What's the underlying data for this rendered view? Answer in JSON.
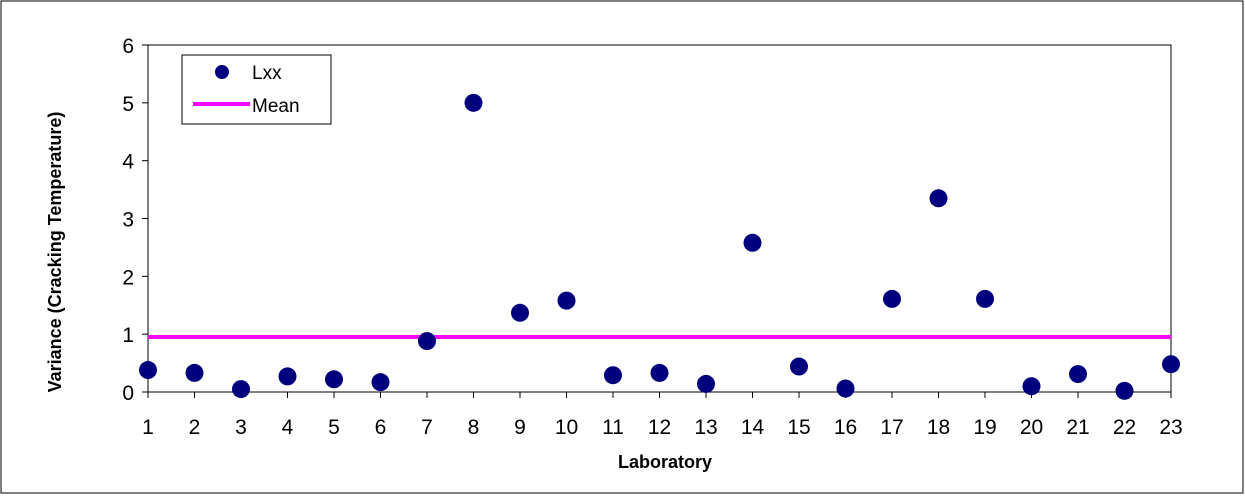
{
  "chart_data": {
    "type": "scatter",
    "title": "",
    "xlabel": "Laboratory",
    "ylabel": "Variance (Cracking Temperature)",
    "x": [
      1,
      2,
      3,
      4,
      5,
      6,
      7,
      8,
      9,
      10,
      11,
      12,
      13,
      14,
      15,
      16,
      17,
      18,
      19,
      20,
      21,
      22,
      23
    ],
    "x_tick_labels": [
      "1",
      "2",
      "3",
      "4",
      "5",
      "6",
      "7",
      "8",
      "9",
      "10",
      "11",
      "12",
      "13",
      "14",
      "15",
      "16",
      "17",
      "18",
      "19",
      "20",
      "21",
      "22",
      "23"
    ],
    "y_tick_labels": [
      "0",
      "1",
      "2",
      "3",
      "4",
      "5",
      "6"
    ],
    "xlim": [
      1,
      23
    ],
    "ylim": [
      0,
      6
    ],
    "grid": false,
    "legend_position": "top-left",
    "series": [
      {
        "name": "Lxx",
        "kind": "marker",
        "color": "#00007f",
        "values": [
          0.38,
          0.33,
          0.05,
          0.27,
          0.22,
          0.17,
          0.88,
          5.0,
          1.37,
          1.58,
          0.29,
          0.33,
          0.14,
          2.58,
          0.44,
          0.06,
          1.61,
          3.35,
          1.61,
          0.1,
          0.31,
          0.02,
          0.48
        ]
      },
      {
        "name": "Mean",
        "kind": "line",
        "color": "#ff00ff",
        "value": 0.95
      }
    ]
  }
}
